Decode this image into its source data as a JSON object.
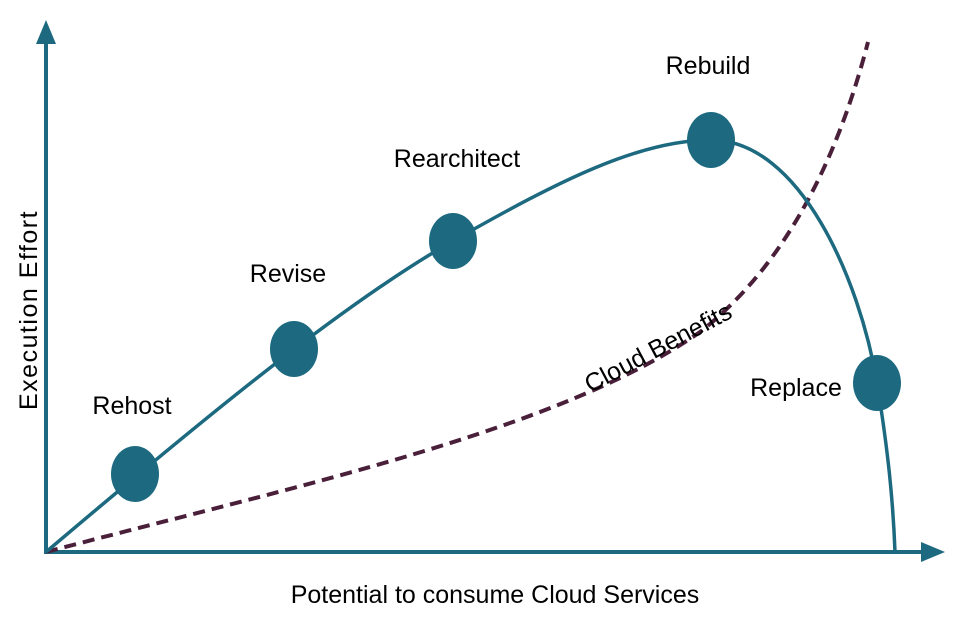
{
  "diagram": {
    "x_axis_label": "Potential to consume Cloud Services",
    "y_axis_label": "Execution Effort",
    "dashed_curve_label": "Cloud Benefits",
    "stages": [
      {
        "label": "Rehost"
      },
      {
        "label": "Revise"
      },
      {
        "label": "Rearchitect"
      },
      {
        "label": "Rebuild"
      },
      {
        "label": "Replace"
      }
    ]
  },
  "colors": {
    "effort_curve": "#1d6a80",
    "stage_marker": "#1d6a80",
    "benefits_curve": "#4a1f3a",
    "axis": "#1d6a80"
  }
}
